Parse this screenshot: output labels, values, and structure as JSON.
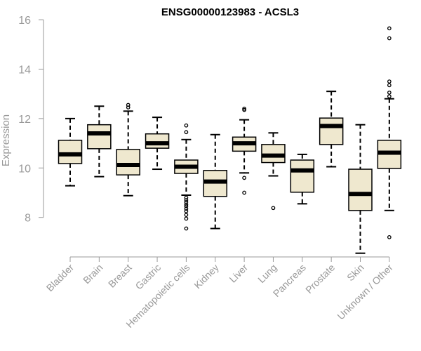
{
  "chart_data": {
    "type": "boxplot",
    "title": "ENSG00000123983 - ACSL3",
    "xlabel": "",
    "ylabel": "Expression",
    "ylim": [
      6.4,
      16.4
    ],
    "yticks": [
      8,
      10,
      12,
      14,
      16
    ],
    "grid": false,
    "legend": "none",
    "colors": {
      "box_fill": "#efe8cf",
      "stroke": "#000000",
      "axis": "#999999",
      "tick_text": "#999999",
      "title": "#000000"
    },
    "categories": [
      "Bladder",
      "Brain",
      "Breast",
      "Gastric",
      "Hematopoietic cells",
      "Kidney",
      "Liver",
      "Lung",
      "Pancreas",
      "Prostate",
      "Skin",
      "Unknown / Other"
    ],
    "boxes": [
      {
        "name": "Bladder",
        "min": 9.28,
        "q1": 10.18,
        "median": 10.55,
        "q3": 11.12,
        "max": 12.0,
        "outliers": []
      },
      {
        "name": "Brain",
        "min": 9.65,
        "q1": 10.78,
        "median": 11.4,
        "q3": 11.75,
        "max": 12.5,
        "outliers": []
      },
      {
        "name": "Breast",
        "min": 8.88,
        "q1": 9.72,
        "median": 10.12,
        "q3": 10.75,
        "max": 12.3,
        "outliers": [
          12.55,
          12.45
        ]
      },
      {
        "name": "Gastric",
        "min": 9.95,
        "q1": 10.8,
        "median": 11.0,
        "q3": 11.38,
        "max": 12.05,
        "outliers": []
      },
      {
        "name": "Hematopoietic cells",
        "min": 8.9,
        "q1": 9.78,
        "median": 10.05,
        "q3": 10.32,
        "max": 11.15,
        "outliers": [
          11.72,
          11.45,
          8.8,
          8.7,
          8.62,
          8.52,
          8.45,
          8.35,
          8.25,
          8.1,
          7.95,
          7.55
        ]
      },
      {
        "name": "Kidney",
        "min": 7.55,
        "q1": 8.85,
        "median": 9.45,
        "q3": 9.9,
        "max": 11.35,
        "outliers": []
      },
      {
        "name": "Liver",
        "min": 9.8,
        "q1": 10.68,
        "median": 11.0,
        "q3": 11.25,
        "max": 11.95,
        "outliers": [
          12.35,
          12.4,
          9.6,
          9.0
        ]
      },
      {
        "name": "Lung",
        "min": 9.68,
        "q1": 10.22,
        "median": 10.5,
        "q3": 10.95,
        "max": 11.42,
        "outliers": [
          8.38
        ]
      },
      {
        "name": "Pancreas",
        "min": 8.55,
        "q1": 9.02,
        "median": 9.9,
        "q3": 10.32,
        "max": 10.55,
        "outliers": []
      },
      {
        "name": "Prostate",
        "min": 10.05,
        "q1": 10.95,
        "median": 11.7,
        "q3": 12.02,
        "max": 13.1,
        "outliers": []
      },
      {
        "name": "Skin",
        "min": 6.55,
        "q1": 8.28,
        "median": 8.95,
        "q3": 9.95,
        "max": 11.75,
        "outliers": []
      },
      {
        "name": "Unknown / Other",
        "min": 8.28,
        "q1": 9.98,
        "median": 10.62,
        "q3": 11.12,
        "max": 12.8,
        "outliers": [
          15.65,
          15.25,
          13.5,
          13.35,
          13.05,
          12.9,
          7.2
        ]
      }
    ]
  }
}
